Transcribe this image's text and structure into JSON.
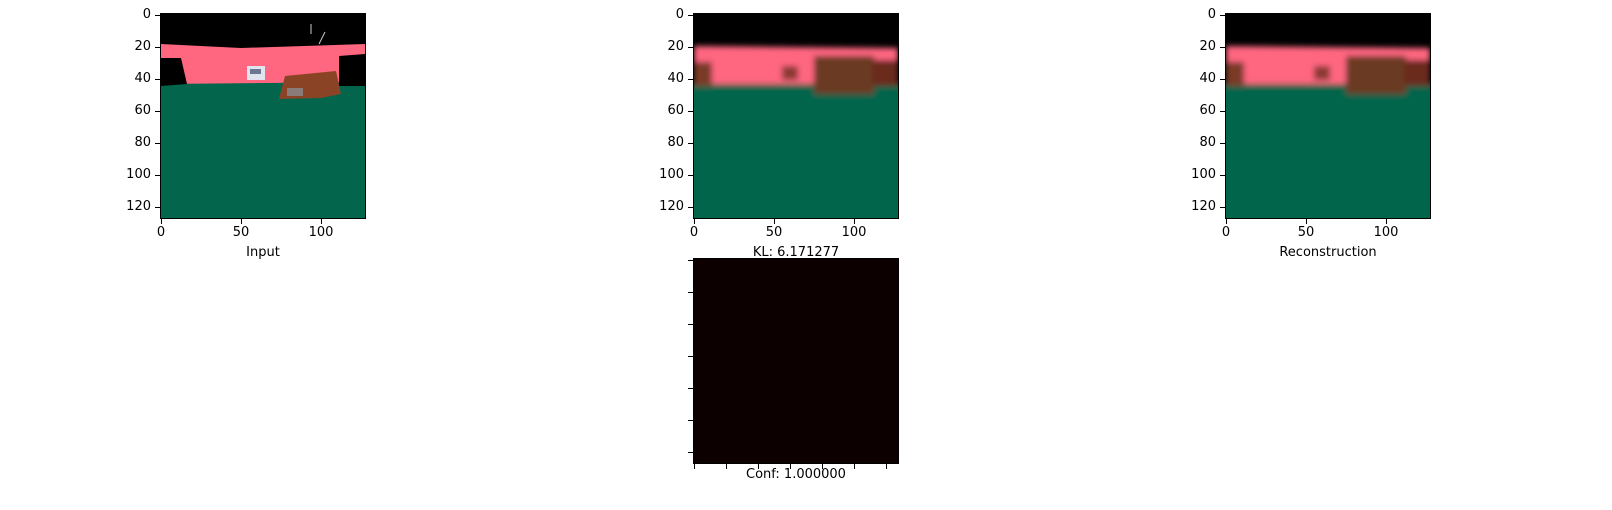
{
  "chart_data": [
    {
      "type": "image",
      "panel": "input",
      "xlabel": "Input",
      "xticks": [
        "0",
        "50",
        "100"
      ],
      "yticks": [
        "0",
        "20",
        "40",
        "60",
        "80",
        "100",
        "120"
      ],
      "xlim": [
        0,
        128
      ],
      "ylim": [
        128,
        0
      ],
      "colors": {
        "sky": "#000000",
        "wall": "#ff6680",
        "floor": "#02654c",
        "box": "#8b4325"
      }
    },
    {
      "type": "image",
      "panel": "prediction",
      "xlabel": "KL: 6.171277",
      "xticks": [
        "0",
        "50",
        "100"
      ],
      "yticks": [
        "0",
        "20",
        "40",
        "60",
        "80",
        "100",
        "120"
      ],
      "xlim": [
        0,
        128
      ],
      "ylim": [
        128,
        0
      ]
    },
    {
      "type": "image",
      "panel": "reconstruction",
      "xlabel": "Reconstruction",
      "xticks": [
        "0",
        "50",
        "100"
      ],
      "yticks": [
        "0",
        "20",
        "40",
        "60",
        "80",
        "100",
        "120"
      ],
      "xlim": [
        0,
        128
      ],
      "ylim": [
        128,
        0
      ]
    },
    {
      "type": "heatmap",
      "panel": "confidence",
      "xlabel": "Conf: 1.000000",
      "colors": {
        "fill": "#0d0000"
      }
    }
  ]
}
